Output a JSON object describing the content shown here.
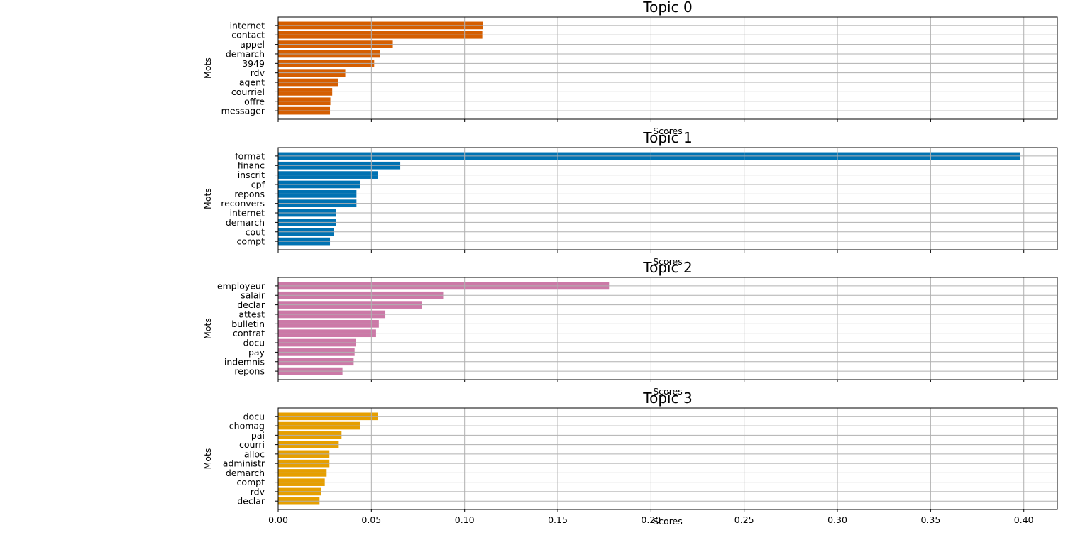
{
  "chart_data": [
    {
      "type": "bar",
      "orientation": "horizontal",
      "title": "Topic 0",
      "xlabel": "Scores",
      "ylabel": "Mots",
      "color": "#d55e00",
      "xlim": [
        0,
        0.418
      ],
      "grid": true,
      "categories": [
        "internet",
        "contact",
        "appel",
        "demarch",
        "3949",
        "rdv",
        "agent",
        "courriel",
        "offre",
        "messager"
      ],
      "values": [
        0.11,
        0.1095,
        0.0615,
        0.0545,
        0.0515,
        0.036,
        0.032,
        0.029,
        0.028,
        0.0278
      ]
    },
    {
      "type": "bar",
      "orientation": "horizontal",
      "title": "Topic 1",
      "xlabel": "Scores",
      "ylabel": "Mots",
      "color": "#0072b2",
      "xlim": [
        0,
        0.418
      ],
      "grid": true,
      "categories": [
        "format",
        "financ",
        "inscrit",
        "cpf",
        "repons",
        "reconvers",
        "internet",
        "demarch",
        "cout",
        "compt"
      ],
      "values": [
        0.398,
        0.0655,
        0.0535,
        0.044,
        0.042,
        0.042,
        0.0312,
        0.0312,
        0.0298,
        0.0278
      ]
    },
    {
      "type": "bar",
      "orientation": "horizontal",
      "title": "Topic 2",
      "xlabel": "Scores",
      "ylabel": "Mots",
      "color": "#cc79a7",
      "xlim": [
        0,
        0.418
      ],
      "grid": true,
      "categories": [
        "employeur",
        "salair",
        "declar",
        "attest",
        "bulletin",
        "contrat",
        "docu",
        "pay",
        "indemnis",
        "repons"
      ],
      "values": [
        0.1775,
        0.0885,
        0.077,
        0.0575,
        0.054,
        0.0525,
        0.0415,
        0.041,
        0.0405,
        0.0345
      ]
    },
    {
      "type": "bar",
      "orientation": "horizontal",
      "title": "Topic 3",
      "xlabel": "Scores",
      "ylabel": "Mots",
      "color": "#e69f00",
      "xlim": [
        0,
        0.418
      ],
      "grid": true,
      "categories": [
        "docu",
        "chomag",
        "pai",
        "courri",
        "alloc",
        "administr",
        "demarch",
        "compt",
        "rdv",
        "declar"
      ],
      "values": [
        0.0535,
        0.044,
        0.034,
        0.0325,
        0.0275,
        0.0275,
        0.026,
        0.025,
        0.0232,
        0.0222
      ]
    }
  ],
  "xticks": [
    "0.00",
    "0.05",
    "0.10",
    "0.15",
    "0.20",
    "0.25",
    "0.30",
    "0.35",
    "0.40"
  ]
}
